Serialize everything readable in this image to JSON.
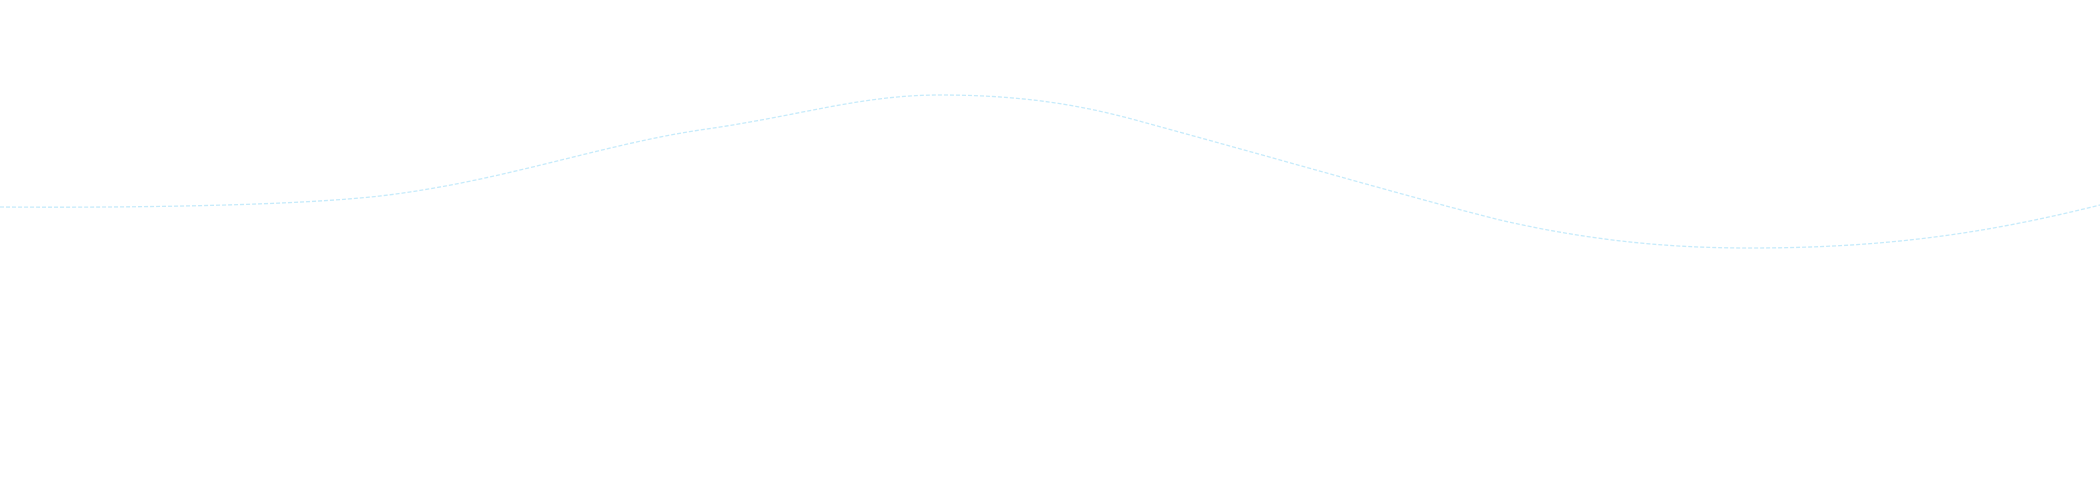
{
  "background_color": "#ffffff",
  "wave": {
    "stroke_color": "#c6ebfb",
    "style": "dashed"
  }
}
